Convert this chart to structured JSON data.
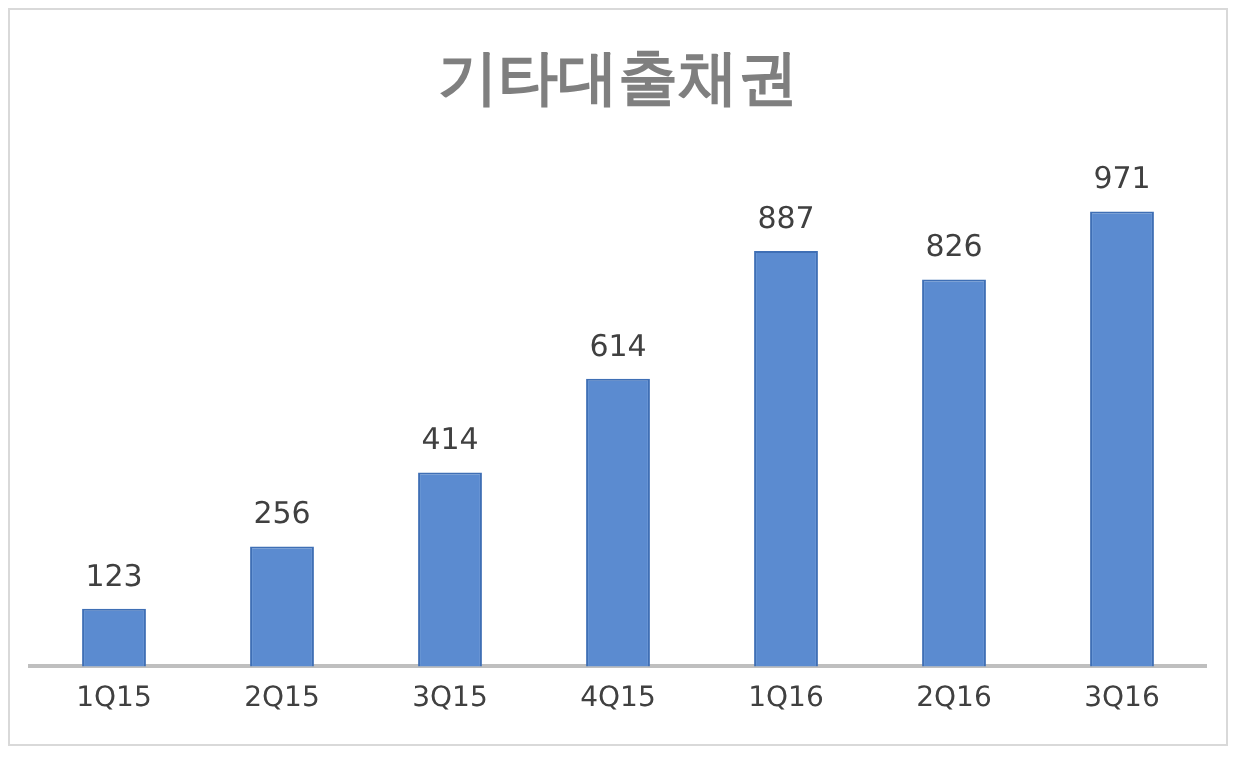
{
  "chart_data": {
    "type": "bar",
    "title": "기타대출채권",
    "categories": [
      "1Q15",
      "2Q15",
      "3Q15",
      "4Q15",
      "1Q16",
      "2Q16",
      "3Q16"
    ],
    "values": [
      123,
      256,
      414,
      614,
      887,
      826,
      971
    ],
    "color": "#5b8bd0",
    "data_labels": true,
    "grid": false,
    "legend": false
  }
}
